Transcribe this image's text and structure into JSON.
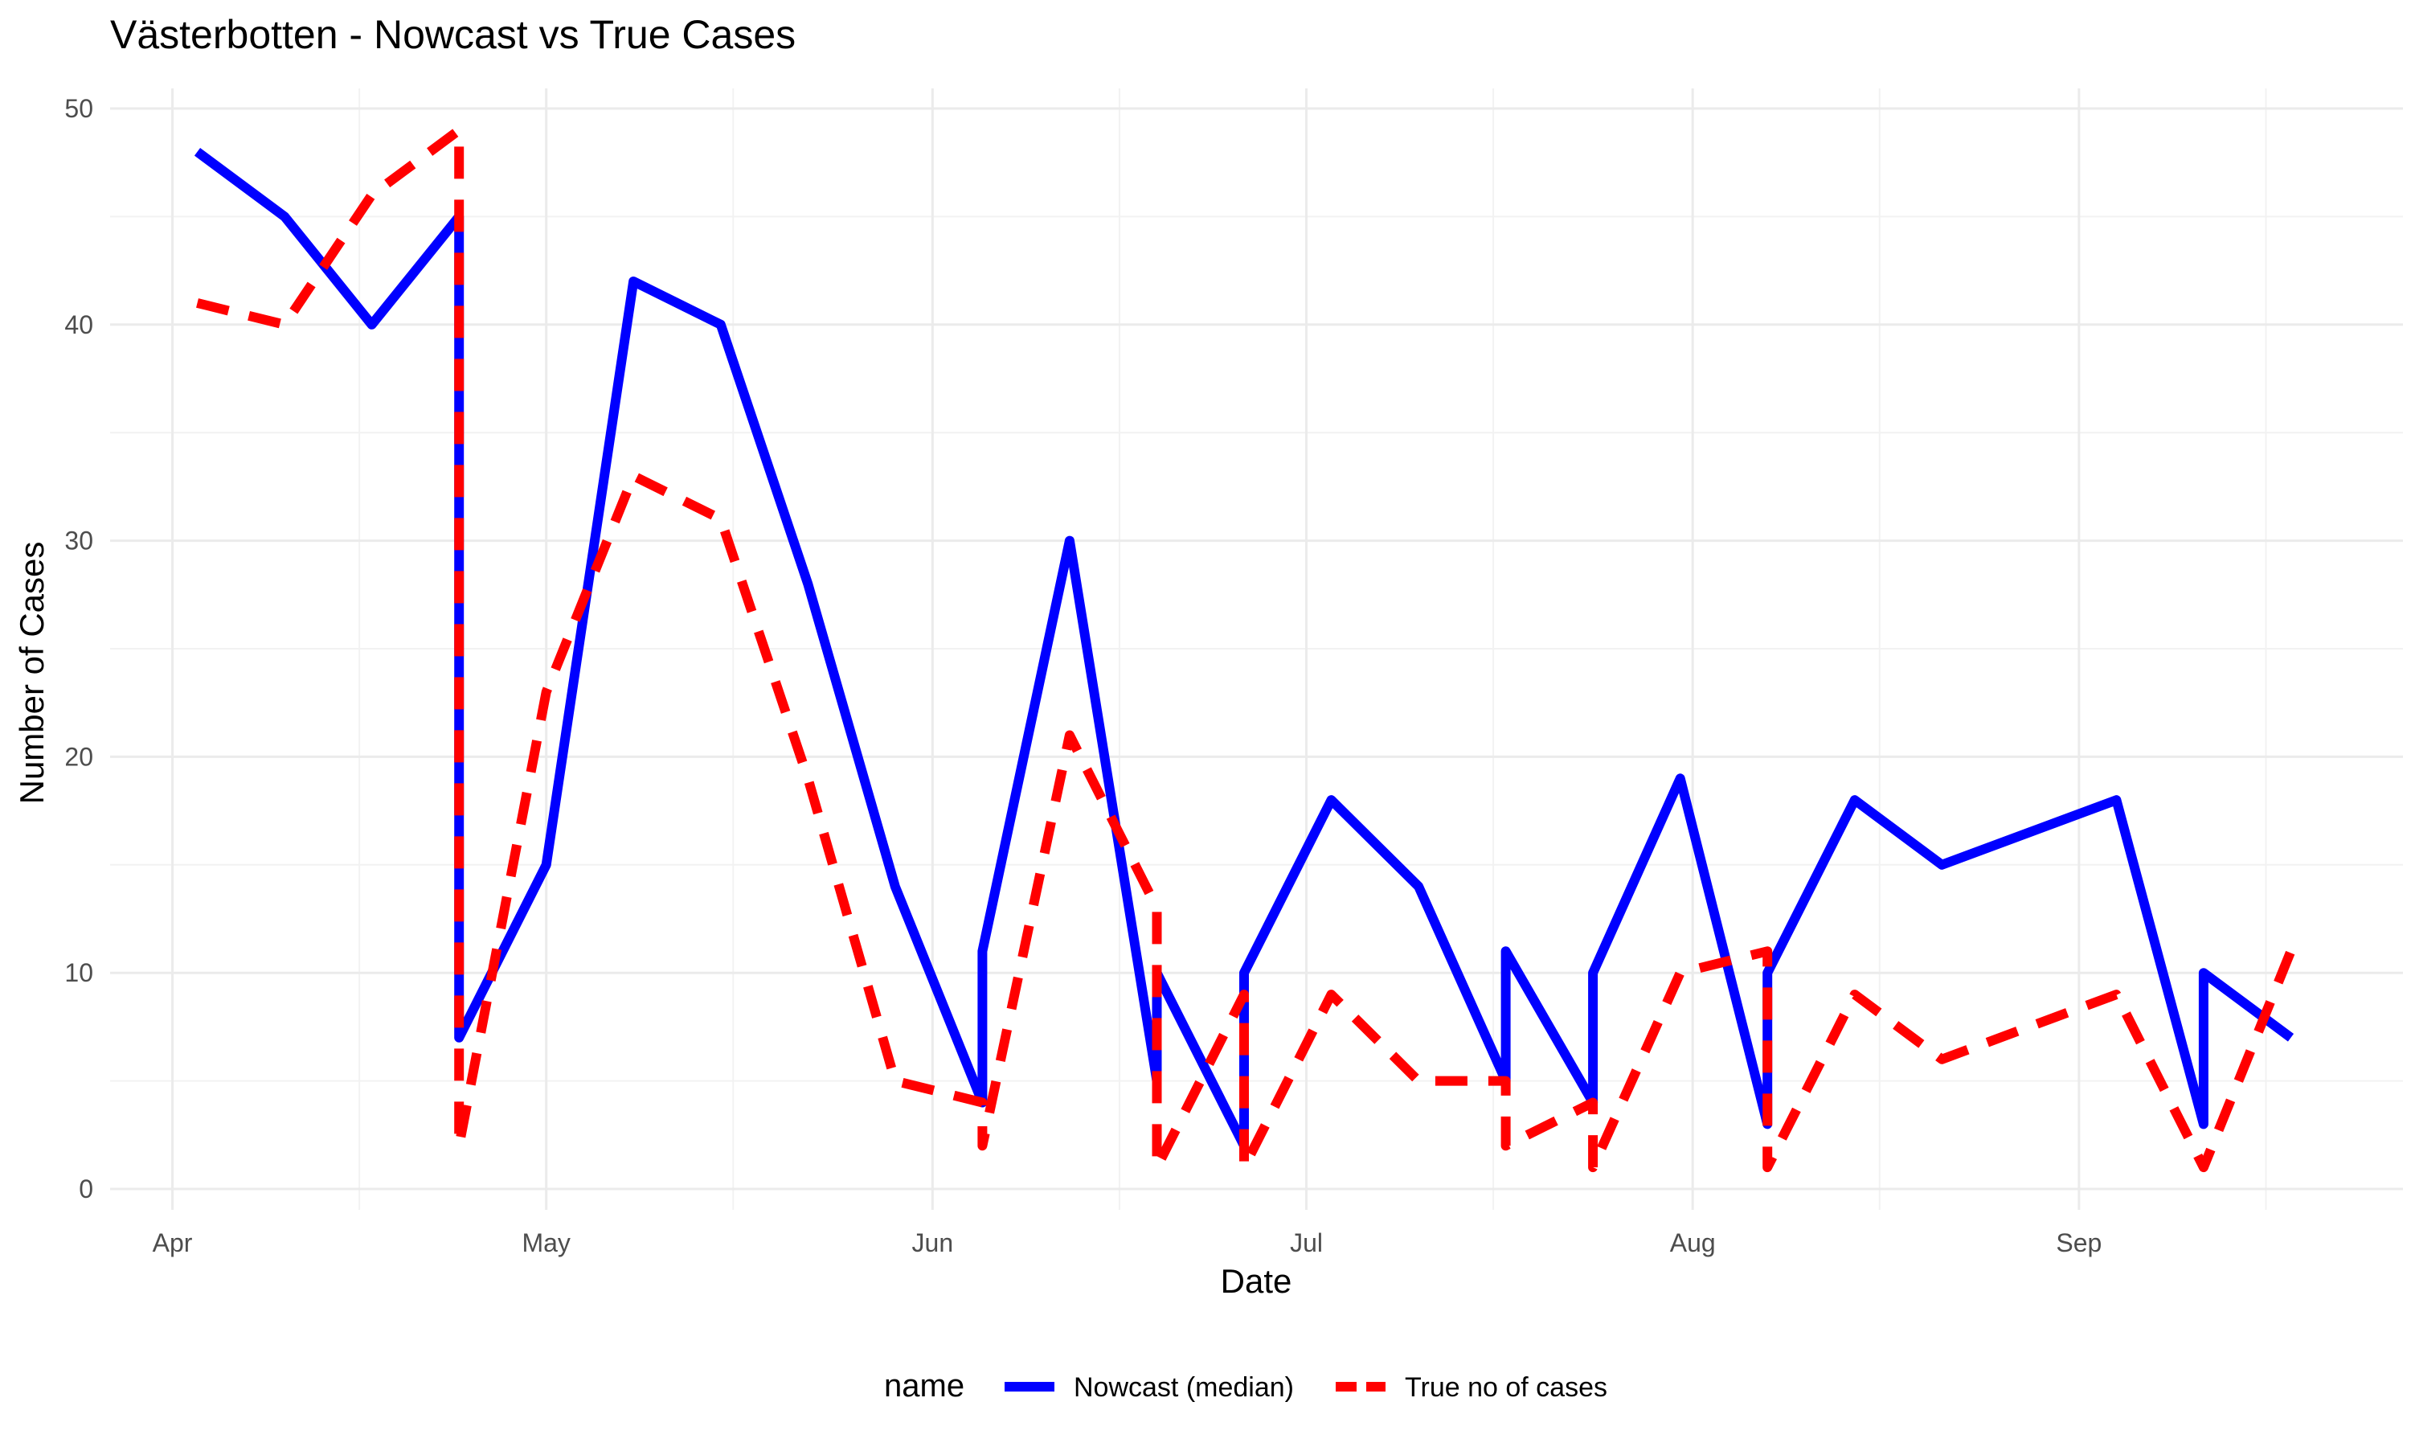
{
  "chart_data": {
    "type": "line",
    "title": "Västerbotten - Nowcast vs True Cases",
    "xlabel": "Date",
    "ylabel": "Number of Cases",
    "ylim": [
      0,
      50
    ],
    "xlim": [
      "2020-03-27",
      "2020-09-27"
    ],
    "y_ticks": [
      0,
      10,
      20,
      30,
      40,
      50
    ],
    "x_ticks": [
      {
        "date": "2020-04-01",
        "label": "Apr"
      },
      {
        "date": "2020-05-01",
        "label": "May"
      },
      {
        "date": "2020-06-01",
        "label": "Jun"
      },
      {
        "date": "2020-07-01",
        "label": "Jul"
      },
      {
        "date": "2020-08-01",
        "label": "Aug"
      },
      {
        "date": "2020-09-01",
        "label": "Sep"
      }
    ],
    "x_minor_ticks": [
      "2020-04-16",
      "2020-05-16",
      "2020-06-16",
      "2020-07-16",
      "2020-08-16",
      "2020-09-16"
    ],
    "grid": true,
    "legend": {
      "title": "name",
      "position": "bottom"
    },
    "series": [
      {
        "name": "Nowcast (median)",
        "color": "#0000ff",
        "style": "solid",
        "points": [
          [
            "2020-04-03",
            48
          ],
          [
            "2020-04-10",
            45
          ],
          [
            "2020-04-17",
            40
          ],
          [
            "2020-04-24",
            45
          ],
          [
            "2020-04-24",
            7
          ],
          [
            "2020-05-01",
            15
          ],
          [
            "2020-05-08",
            42
          ],
          [
            "2020-05-15",
            40
          ],
          [
            "2020-05-22",
            28
          ],
          [
            "2020-05-29",
            14
          ],
          [
            "2020-06-05",
            4
          ],
          [
            "2020-06-05",
            11
          ],
          [
            "2020-06-12",
            30
          ],
          [
            "2020-06-19",
            5
          ],
          [
            "2020-06-19",
            10
          ],
          [
            "2020-06-26",
            2
          ],
          [
            "2020-06-26",
            10
          ],
          [
            "2020-07-03",
            18
          ],
          [
            "2020-07-10",
            14
          ],
          [
            "2020-07-17",
            5
          ],
          [
            "2020-07-17",
            11
          ],
          [
            "2020-07-24",
            4
          ],
          [
            "2020-07-24",
            10
          ],
          [
            "2020-07-31",
            19
          ],
          [
            "2020-08-07",
            3
          ],
          [
            "2020-08-07",
            10
          ],
          [
            "2020-08-14",
            18
          ],
          [
            "2020-08-21",
            15
          ],
          [
            "2020-08-28",
            16.5
          ],
          [
            "2020-09-04",
            18
          ],
          [
            "2020-09-11",
            3
          ],
          [
            "2020-09-11",
            10
          ],
          [
            "2020-09-18",
            7
          ]
        ]
      },
      {
        "name": "True no of cases",
        "color": "#ff0000",
        "style": "dashed",
        "points": [
          [
            "2020-04-03",
            41
          ],
          [
            "2020-04-10",
            40
          ],
          [
            "2020-04-17",
            46
          ],
          [
            "2020-04-24",
            49
          ],
          [
            "2020-04-24",
            2
          ],
          [
            "2020-05-01",
            23
          ],
          [
            "2020-05-08",
            33
          ],
          [
            "2020-05-15",
            31
          ],
          [
            "2020-05-22",
            19
          ],
          [
            "2020-05-29",
            5
          ],
          [
            "2020-06-05",
            4
          ],
          [
            "2020-06-05",
            2
          ],
          [
            "2020-06-12",
            21
          ],
          [
            "2020-06-19",
            13
          ],
          [
            "2020-06-19",
            1
          ],
          [
            "2020-06-26",
            9
          ],
          [
            "2020-06-26",
            1
          ],
          [
            "2020-07-03",
            9
          ],
          [
            "2020-07-10",
            5
          ],
          [
            "2020-07-17",
            5
          ],
          [
            "2020-07-17",
            2
          ],
          [
            "2020-07-24",
            4
          ],
          [
            "2020-07-24",
            1
          ],
          [
            "2020-07-31",
            10
          ],
          [
            "2020-08-07",
            11
          ],
          [
            "2020-08-07",
            1
          ],
          [
            "2020-08-14",
            9
          ],
          [
            "2020-08-21",
            6
          ],
          [
            "2020-08-28",
            7.5
          ],
          [
            "2020-09-04",
            9
          ],
          [
            "2020-09-11",
            1
          ],
          [
            "2020-09-18",
            11
          ]
        ]
      }
    ]
  }
}
